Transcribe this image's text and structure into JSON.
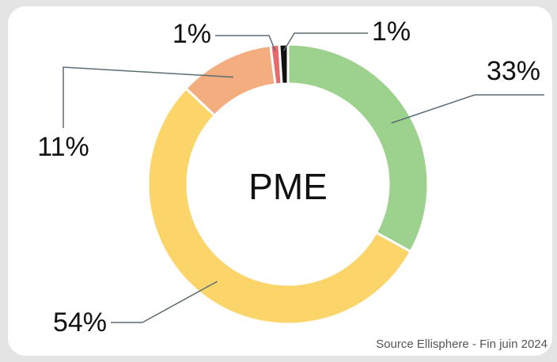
{
  "chart_data": {
    "type": "donut",
    "title": "PME",
    "categories": [
      null,
      null,
      null,
      null,
      null
    ],
    "values": [
      33,
      54,
      11,
      1,
      1
    ],
    "value_labels": [
      "33%",
      "54%",
      "11%",
      "1%",
      "1%"
    ],
    "colors": [
      "#9dd18e",
      "#fcd56a",
      "#f4ad7e",
      "#e8696b",
      "#111111"
    ],
    "source": "Source Ellisphere - Fin juin 2024"
  }
}
